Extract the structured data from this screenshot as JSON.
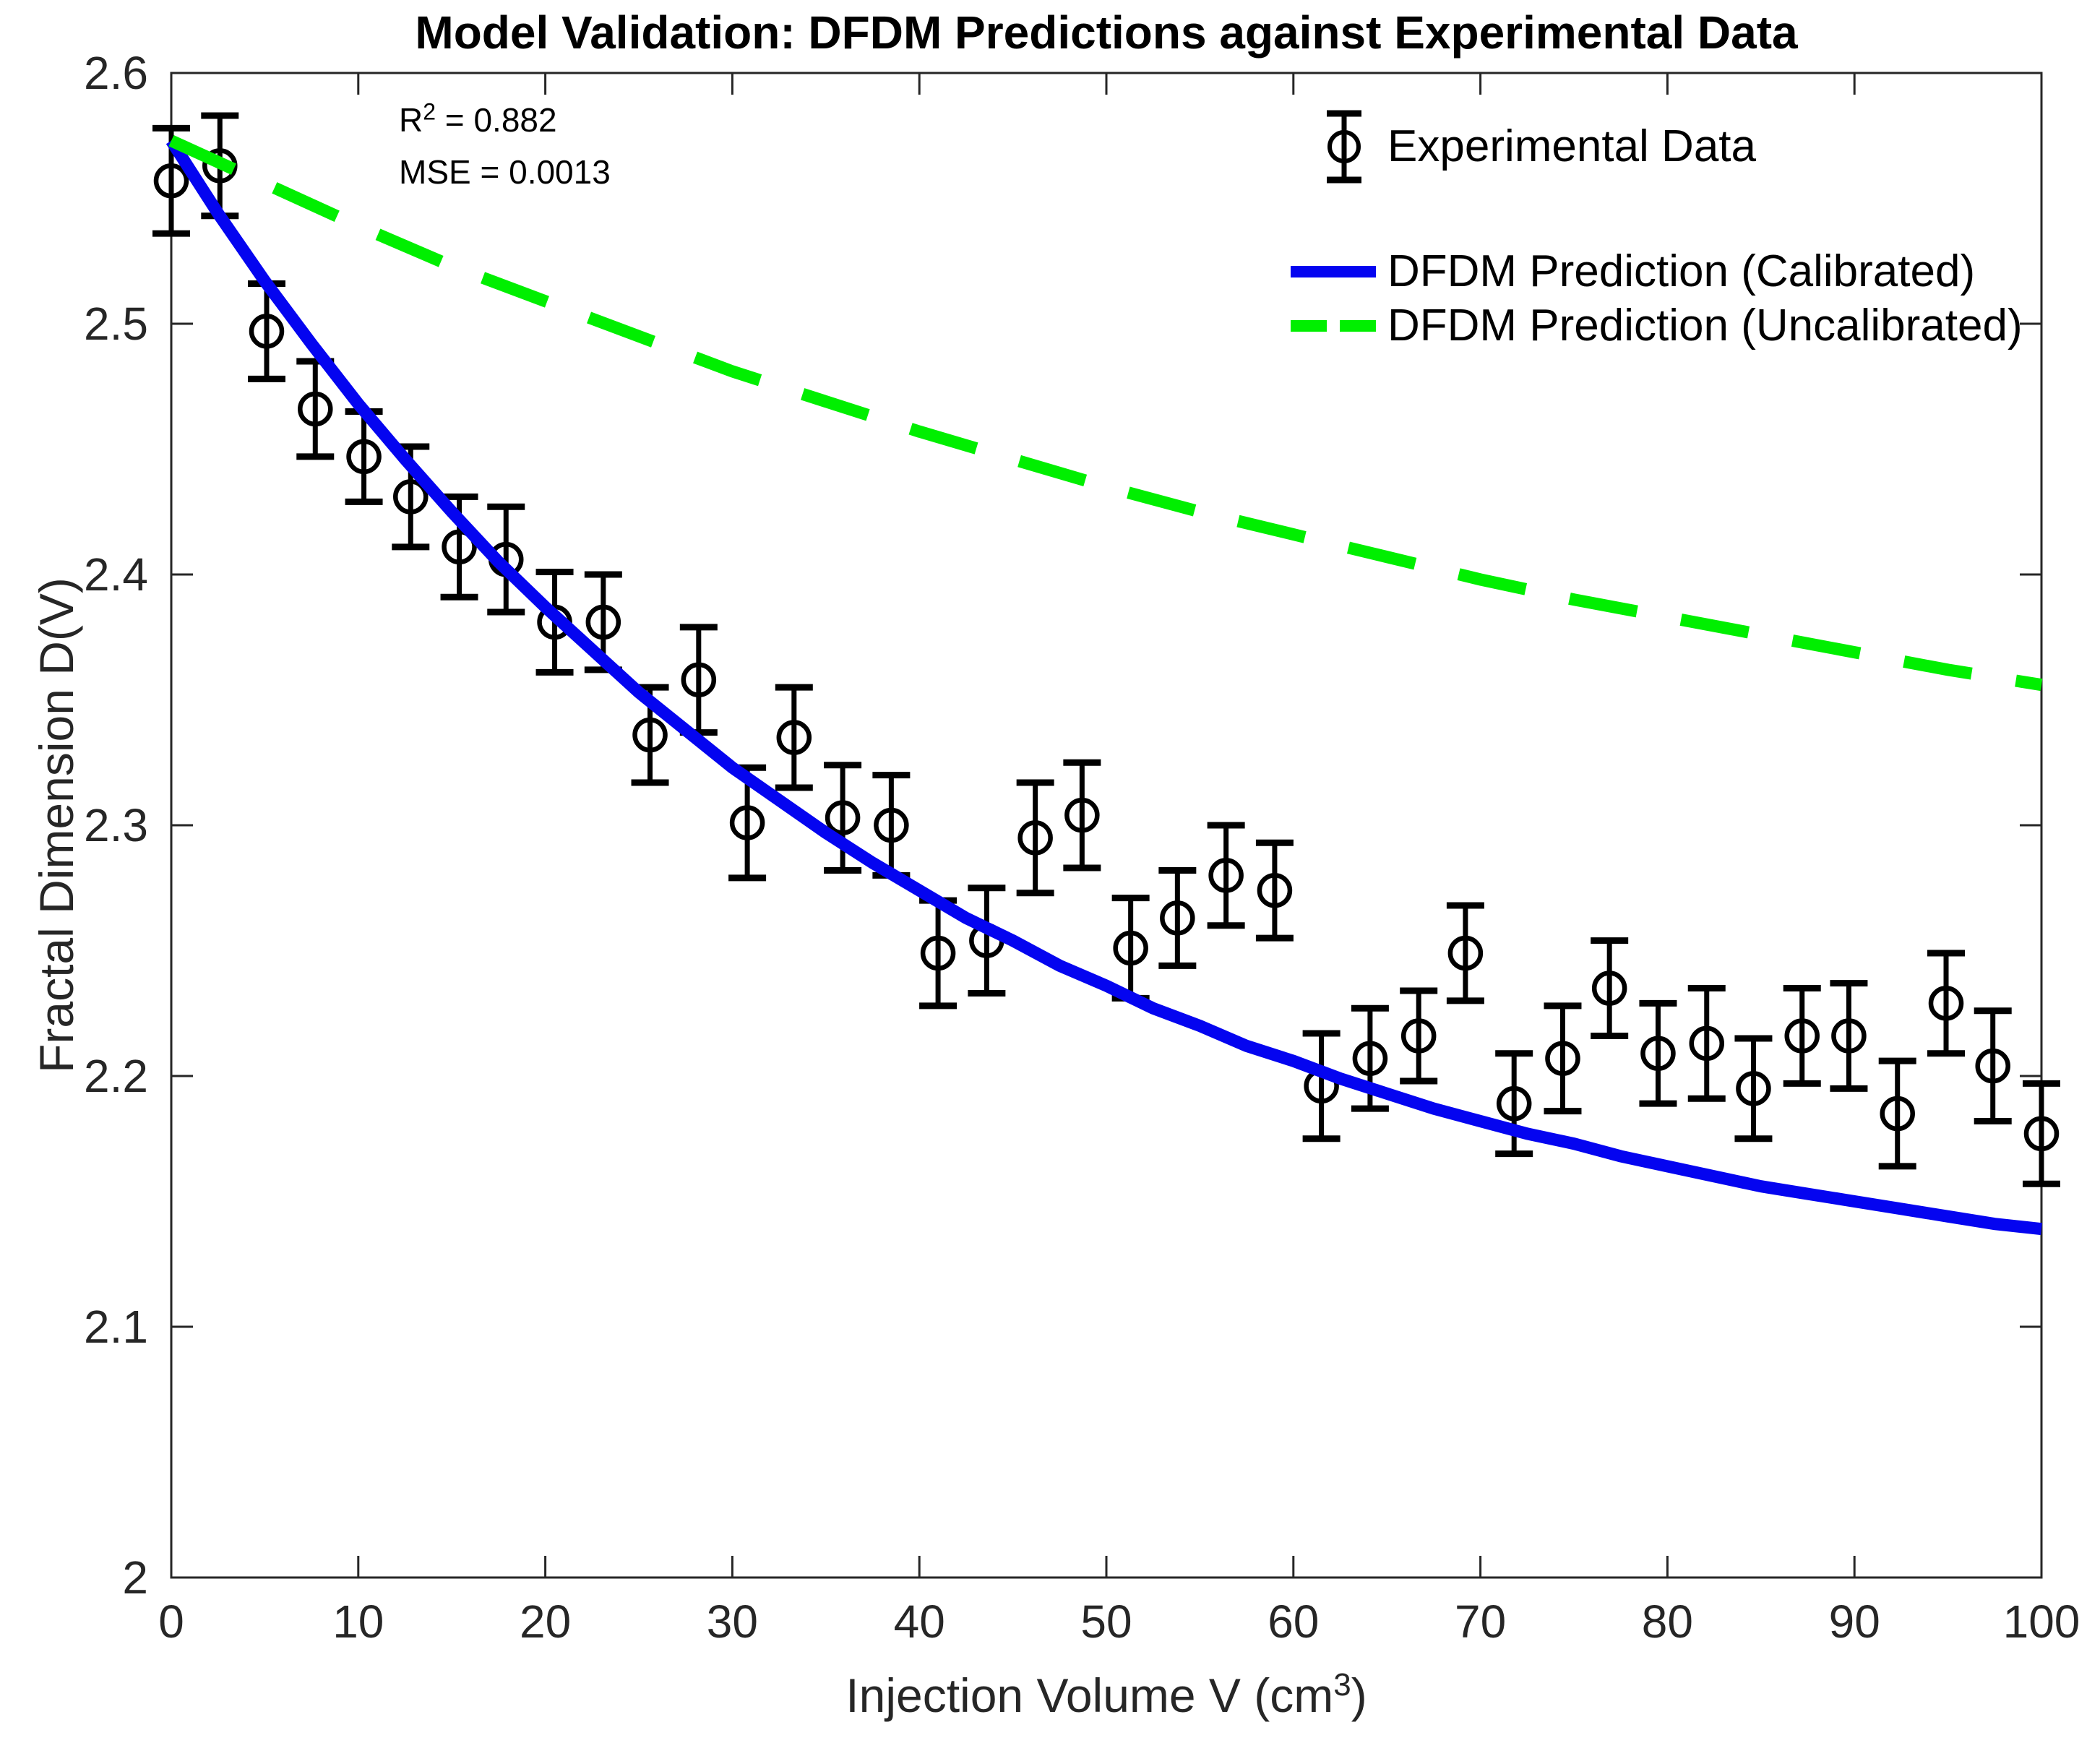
{
  "chart_data": {
    "type": "line",
    "title": "Model Validation: DFDM Predictions against Experimental Data",
    "xlabel_parts": {
      "pre": "Injection Volume V (cm",
      "sup": "3",
      "post": ")"
    },
    "ylabel": "Fractal Dimension D(V)",
    "xlim": [
      0,
      100
    ],
    "ylim": [
      2.0,
      2.6
    ],
    "xticks": [
      0,
      10,
      20,
      30,
      40,
      50,
      60,
      70,
      80,
      90,
      100
    ],
    "xtick_labels": [
      "0",
      "10",
      "20",
      "30",
      "40",
      "50",
      "60",
      "70",
      "80",
      "90",
      "100"
    ],
    "yticks": [
      2.0,
      2.1,
      2.2,
      2.3,
      2.4,
      2.5,
      2.6
    ],
    "ytick_labels": [
      "2",
      "2.1",
      "2.2",
      "2.3",
      "2.4",
      "2.5",
      "2.6"
    ],
    "grid": false,
    "legend_position": "top-right-inside",
    "axis_color": "#262626",
    "annotations": [
      {
        "pre": "R",
        "sup": "2",
        "post": " = 0.882"
      },
      {
        "pre": "MSE = 0.0013",
        "sup": "",
        "post": ""
      }
    ],
    "series": [
      {
        "name": "Experimental Data",
        "type": "scatter",
        "marker": "circle-errorbar",
        "color": "#000000",
        "x": [
          0,
          2.6,
          5.1,
          7.7,
          10.3,
          12.8,
          15.4,
          17.9,
          20.5,
          23.1,
          25.6,
          28.2,
          30.8,
          33.3,
          35.9,
          38.5,
          41.0,
          43.6,
          46.2,
          48.7,
          51.3,
          53.8,
          56.4,
          59.0,
          61.5,
          64.1,
          66.7,
          69.2,
          71.8,
          74.4,
          76.9,
          79.5,
          82.1,
          84.6,
          87.2,
          89.7,
          92.3,
          94.9,
          97.4,
          100.0
        ],
        "y": [
          2.557,
          2.563,
          2.497,
          2.466,
          2.447,
          2.431,
          2.411,
          2.406,
          2.381,
          2.381,
          2.336,
          2.358,
          2.301,
          2.335,
          2.303,
          2.3,
          2.249,
          2.254,
          2.295,
          2.304,
          2.251,
          2.263,
          2.28,
          2.274,
          2.196,
          2.207,
          2.216,
          2.249,
          2.189,
          2.207,
          2.235,
          2.209,
          2.213,
          2.195,
          2.216,
          2.216,
          2.185,
          2.229,
          2.204,
          2.177
        ],
        "yerr": [
          0.021,
          0.02,
          0.019,
          0.019,
          0.018,
          0.02,
          0.02,
          0.021,
          0.02,
          0.019,
          0.019,
          0.021,
          0.022,
          0.02,
          0.021,
          0.02,
          0.021,
          0.021,
          0.022,
          0.021,
          0.02,
          0.019,
          0.02,
          0.019,
          0.021,
          0.02,
          0.018,
          0.019,
          0.02,
          0.021,
          0.019,
          0.02,
          0.022,
          0.02,
          0.019,
          0.021,
          0.021,
          0.02,
          0.022,
          0.02
        ]
      },
      {
        "name": "DFDM Prediction (Calibrated)",
        "type": "line",
        "style": "solid",
        "color": "#0404f0",
        "points": [
          [
            0,
            2.573
          ],
          [
            2.5,
            2.544
          ],
          [
            5,
            2.517
          ],
          [
            7.5,
            2.492
          ],
          [
            10,
            2.468
          ],
          [
            12.5,
            2.446
          ],
          [
            15,
            2.425
          ],
          [
            17.5,
            2.405
          ],
          [
            20,
            2.387
          ],
          [
            22.5,
            2.37
          ],
          [
            25,
            2.353
          ],
          [
            27.5,
            2.338
          ],
          [
            30,
            2.323
          ],
          [
            32.5,
            2.31
          ],
          [
            35,
            2.297
          ],
          [
            37.5,
            2.285
          ],
          [
            40,
            2.274
          ],
          [
            42.5,
            2.263
          ],
          [
            45,
            2.254
          ],
          [
            47.5,
            2.244
          ],
          [
            50,
            2.236
          ],
          [
            52.5,
            2.227
          ],
          [
            55,
            2.22
          ],
          [
            57.5,
            2.212
          ],
          [
            60,
            2.206
          ],
          [
            62.5,
            2.199
          ],
          [
            65,
            2.193
          ],
          [
            67.5,
            2.187
          ],
          [
            70,
            2.182
          ],
          [
            72.5,
            2.177
          ],
          [
            75,
            2.173
          ],
          [
            77.5,
            2.168
          ],
          [
            80,
            2.164
          ],
          [
            82.5,
            2.16
          ],
          [
            85,
            2.156
          ],
          [
            87.5,
            2.153
          ],
          [
            90,
            2.15
          ],
          [
            92.5,
            2.147
          ],
          [
            95,
            2.144
          ],
          [
            97.5,
            2.141
          ],
          [
            100,
            2.139
          ]
        ]
      },
      {
        "name": "DFDM Prediction (Uncalibrated)",
        "type": "line",
        "style": "dashed",
        "color": "#00ef00",
        "points": [
          [
            0,
            2.573
          ],
          [
            5,
            2.556
          ],
          [
            10,
            2.539
          ],
          [
            15,
            2.523
          ],
          [
            20,
            2.509
          ],
          [
            25,
            2.495
          ],
          [
            30,
            2.481
          ],
          [
            35,
            2.469
          ],
          [
            40,
            2.457
          ],
          [
            45,
            2.446
          ],
          [
            50,
            2.435
          ],
          [
            55,
            2.425
          ],
          [
            60,
            2.416
          ],
          [
            65,
            2.407
          ],
          [
            70,
            2.398
          ],
          [
            75,
            2.39
          ],
          [
            80,
            2.383
          ],
          [
            85,
            2.376
          ],
          [
            90,
            2.369
          ],
          [
            95,
            2.362
          ],
          [
            100,
            2.356
          ]
        ]
      }
    ]
  }
}
